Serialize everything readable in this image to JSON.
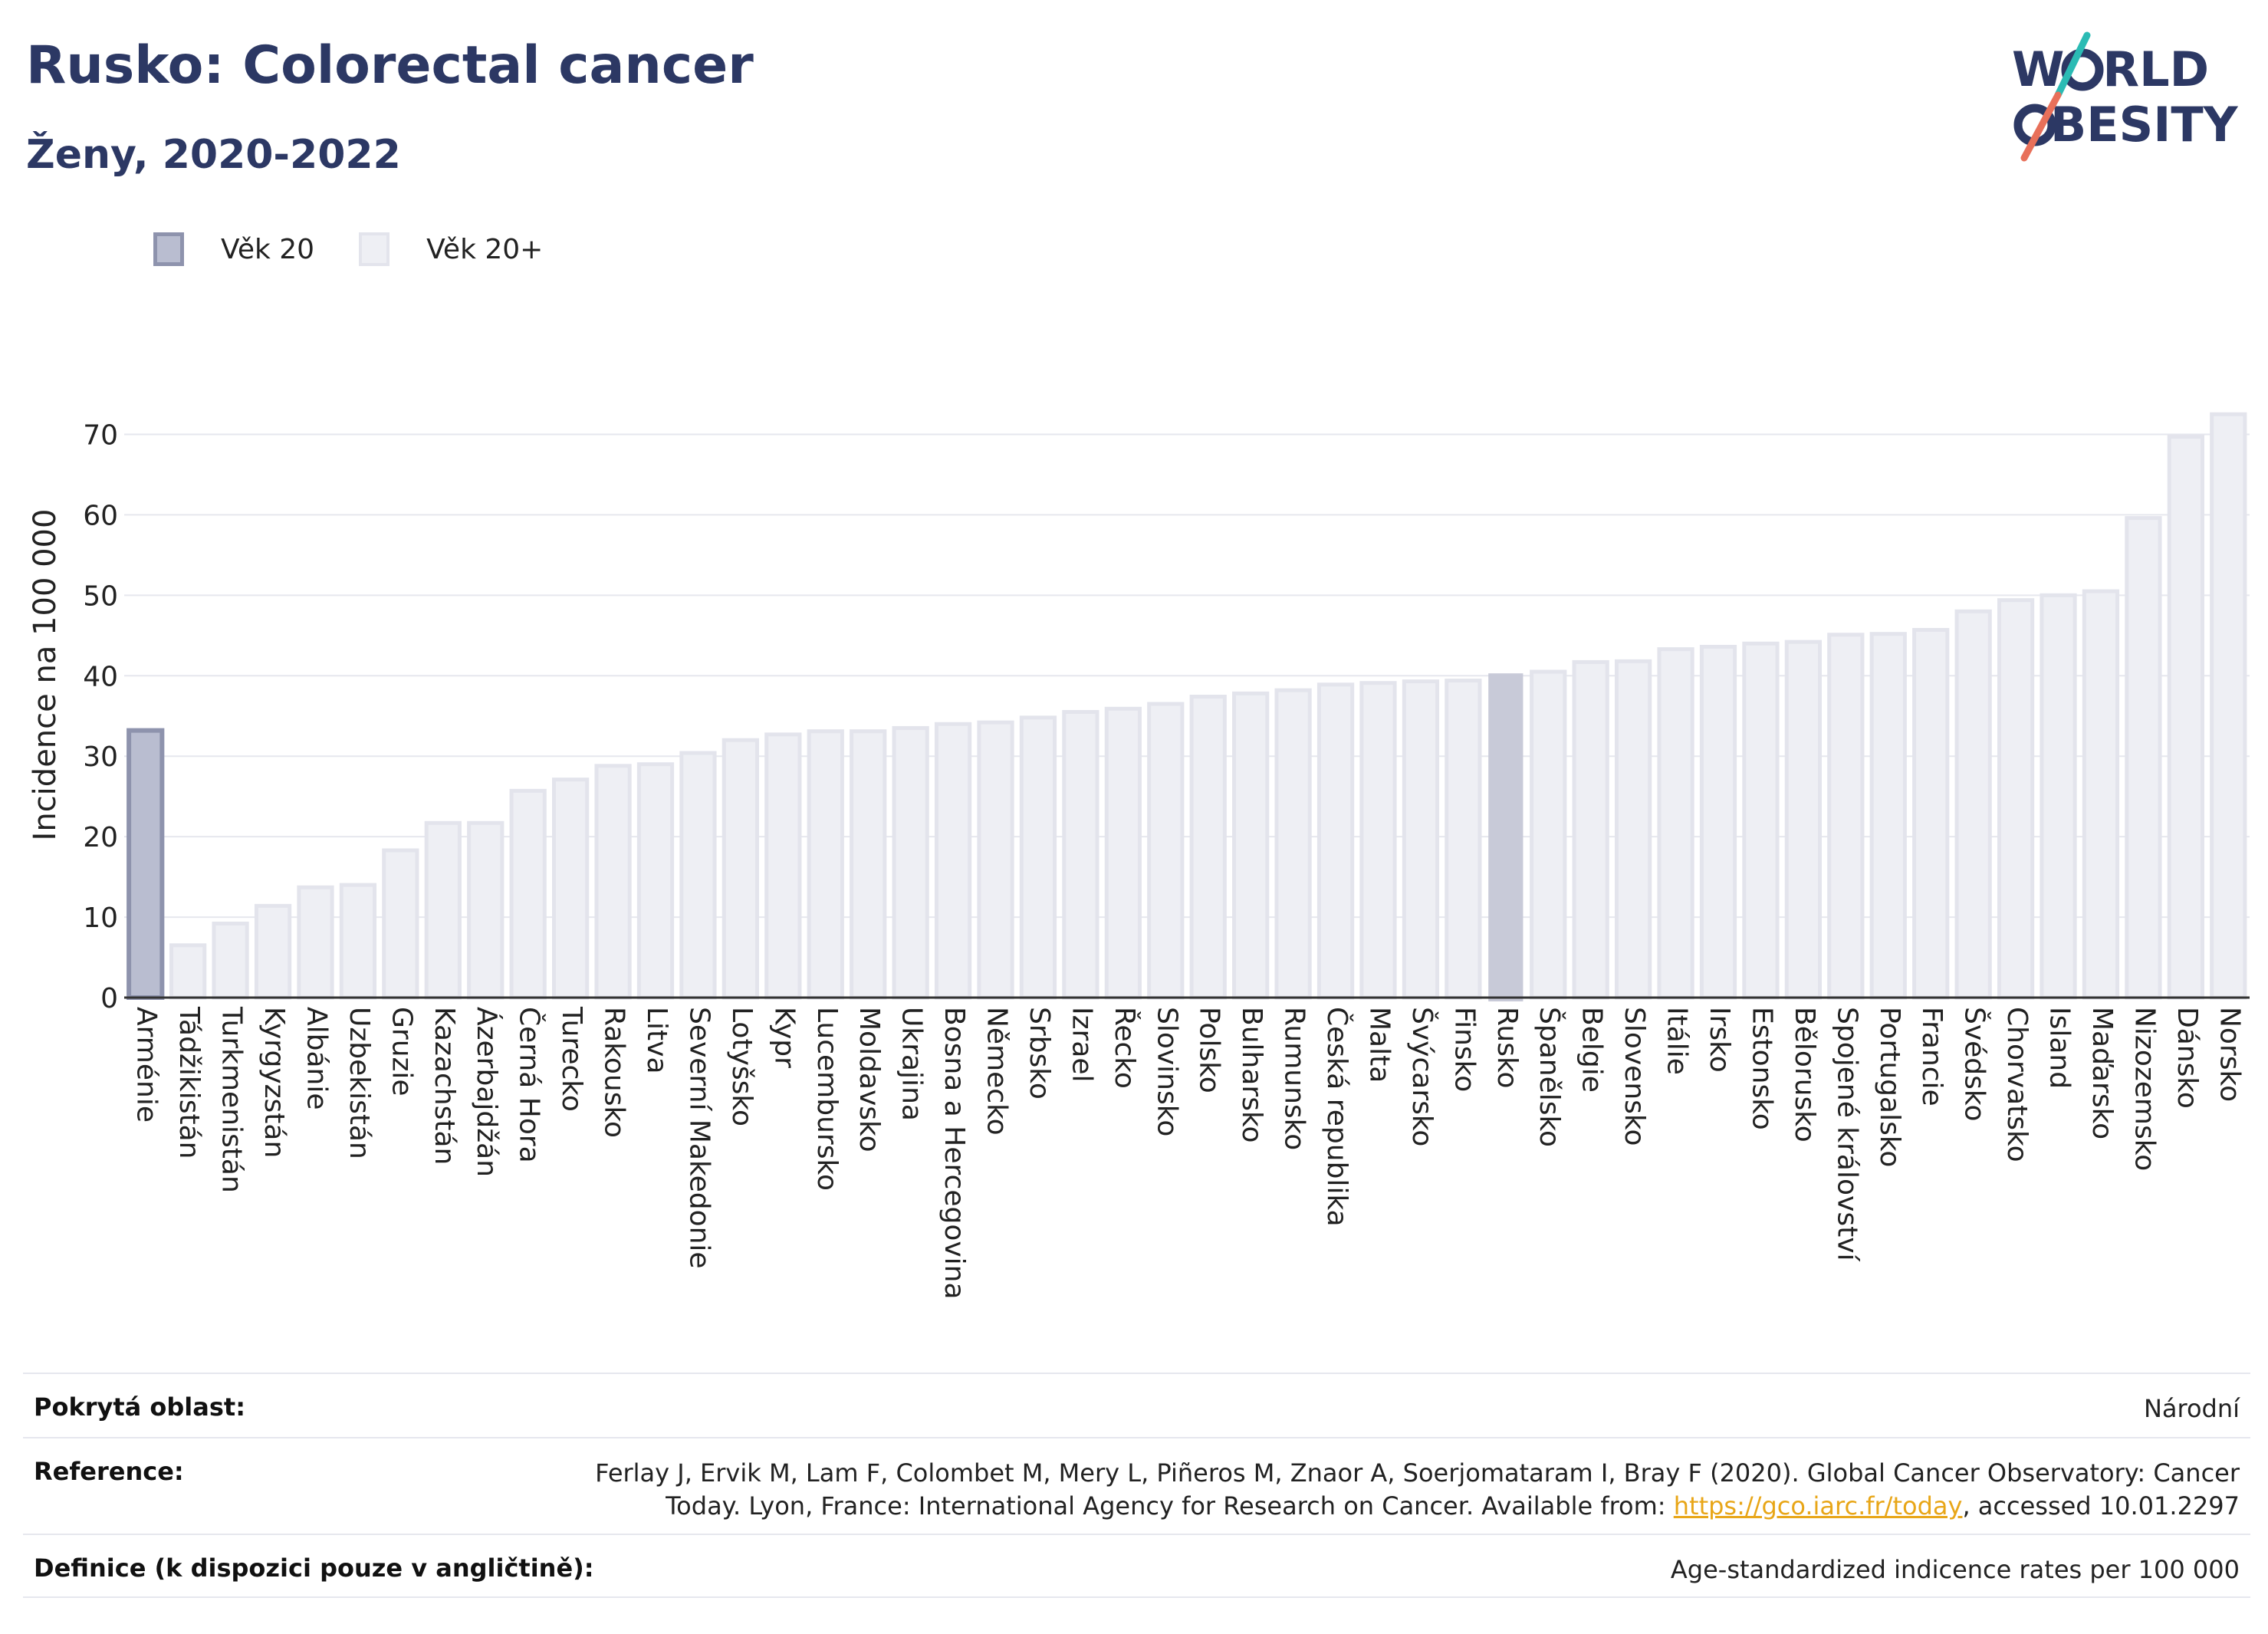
{
  "header": {
    "title": "Rusko: Colorectal cancer",
    "subtitle": "Ženy, 2020-2022"
  },
  "logo": {
    "line1_before": "W",
    "line1_after": "RLD",
    "line2_before": "",
    "line2_after": "BESITY",
    "text_color": "#2c3864",
    "slash_color_top": "#2bbbb4",
    "slash_color_bottom": "#e8705a"
  },
  "legend": {
    "items": [
      {
        "label": "Věk 20",
        "color": "#b9bdd0"
      },
      {
        "label": "Věk 20+",
        "color": "#eeeff4"
      }
    ]
  },
  "chart_data": {
    "type": "bar",
    "ylabel": "Incidence na 100 000",
    "ylim": [
      0,
      75
    ],
    "yticks": [
      0,
      10,
      20,
      30,
      40,
      50,
      60,
      70
    ],
    "grid": true,
    "legend_position": "top-left",
    "categories": [
      "Arménie",
      "Tádžikistán",
      "Turkmenistán",
      "Kyrgyzstán",
      "Albánie",
      "Uzbekistán",
      "Gruzie",
      "Kazachstán",
      "Ázerbajdžán",
      "Černá Hora",
      "Turecko",
      "Rakousko",
      "Litva",
      "Severní Makedonie",
      "Lotyšsko",
      "Kypr",
      "Lucembursko",
      "Moldavsko",
      "Ukrajina",
      "Bosna a Hercegovina",
      "Německo",
      "Srbsko",
      "Izrael",
      "Řecko",
      "Slovinsko",
      "Polsko",
      "Bulharsko",
      "Rumunsko",
      "Česká republika",
      "Malta",
      "Švýcarsko",
      "Finsko",
      "Rusko",
      "Španělsko",
      "Belgie",
      "Slovensko",
      "Itálie",
      "Irsko",
      "Estonsko",
      "Bělorusko",
      "Spojené království",
      "Portugalsko",
      "Francie",
      "Švédsko",
      "Chorvatsko",
      "Island",
      "Maďarsko",
      "Nizozemsko",
      "Dánsko",
      "Norsko"
    ],
    "values": [
      33.2,
      6.5,
      9.2,
      11.4,
      13.7,
      14.0,
      18.3,
      21.7,
      21.7,
      25.7,
      27.1,
      28.8,
      29.0,
      30.4,
      32.0,
      32.7,
      33.1,
      33.1,
      33.5,
      34.0,
      34.2,
      34.8,
      35.5,
      35.9,
      36.5,
      37.4,
      37.8,
      38.2,
      38.9,
      39.1,
      39.3,
      39.4,
      40.2,
      40.5,
      41.7,
      41.8,
      43.3,
      43.6,
      44.0,
      44.2,
      45.1,
      45.2,
      45.7,
      48.0,
      49.4,
      50.0,
      50.5,
      59.6,
      69.7,
      72.5
    ],
    "highlight_age20_category": "Arménie",
    "highlight_country": "Rusko",
    "colors": {
      "default_fill": "#eeeff4",
      "default_stroke": "#e3e4ec",
      "age20_fill": "#b9bdd0",
      "age20_stroke": "#8e93ad",
      "highlight_fill": "#c8cad8"
    }
  },
  "footer": {
    "rows": [
      {
        "label": "Pokrytá oblast:",
        "value": "Národní"
      },
      {
        "label": "Reference:",
        "value_before_link": "Ferlay J, Ervik M, Lam F, Colombet M, Mery L, Piñeros M, Znaor A, Soerjomataram I, Bray F (2020). Global Cancer Observatory: Cancer Today. Lyon, France: International Agency for Research on Cancer. Available from: ",
        "link": "https://gco.iarc.fr/today",
        "value_after_link": ", accessed 10.01.2297"
      },
      {
        "label": "Definice (k dispozici pouze v angličtině):",
        "value": "Age-standardized indicence rates per 100 000"
      }
    ]
  }
}
